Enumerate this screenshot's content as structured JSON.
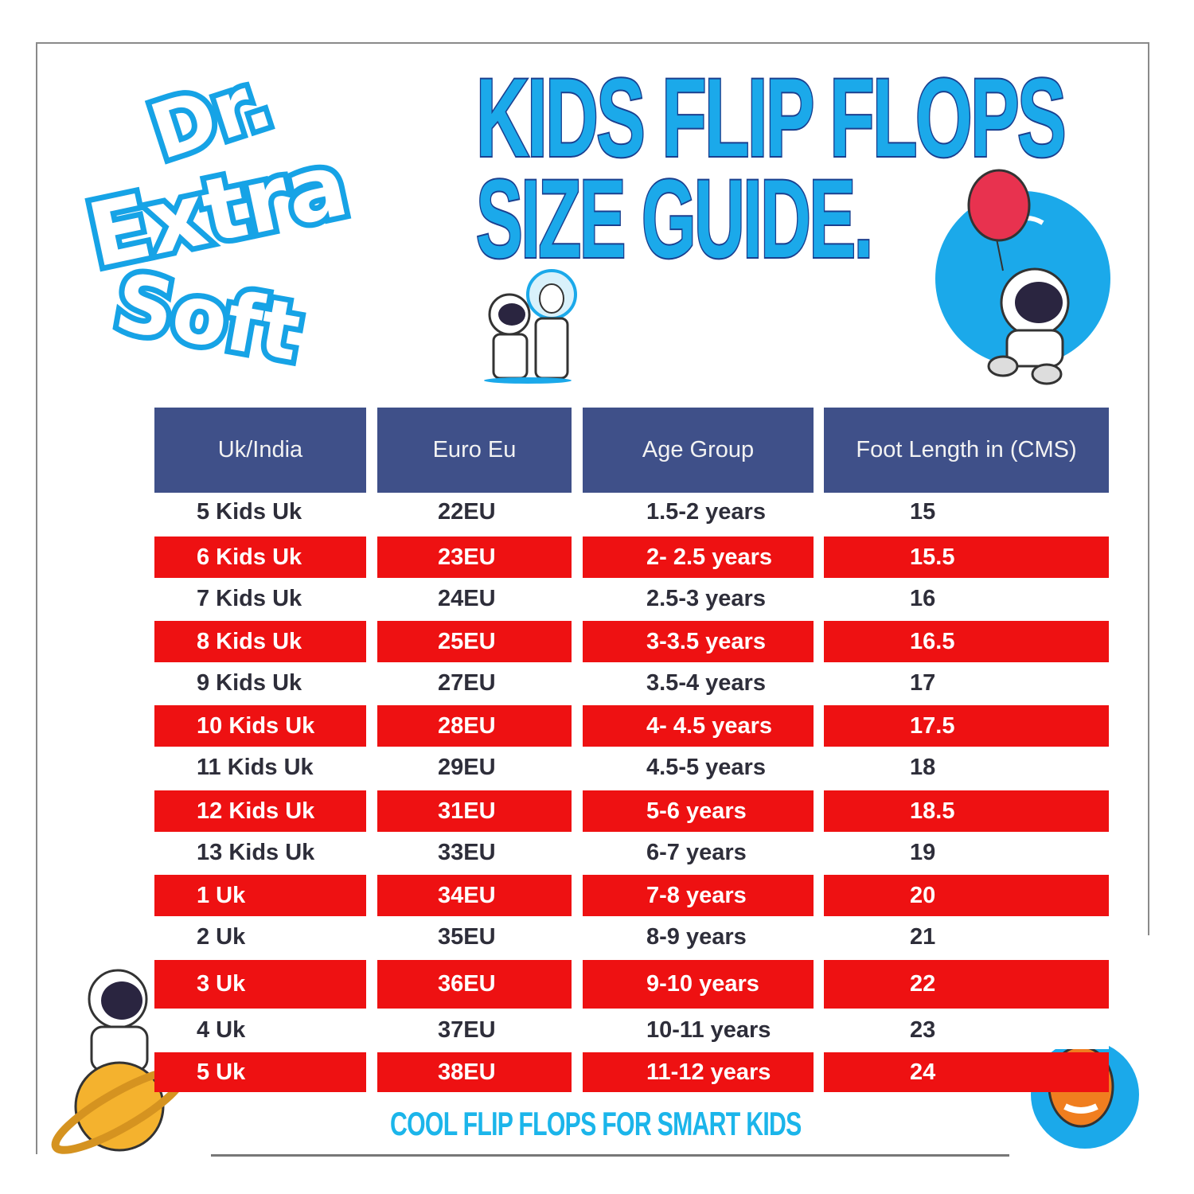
{
  "brand": {
    "line1": "Dr.",
    "line2": "Extra",
    "line3": "Soft"
  },
  "title": {
    "line1": "KIDS FLIP FLOPS",
    "line2": "SIZE GUIDE."
  },
  "table": {
    "headers": [
      "Uk/India",
      "Euro Eu",
      "Age Group",
      "Foot Length in (CMS)"
    ],
    "rows": [
      [
        "5 Kids Uk",
        "22EU",
        "1.5-2 years",
        "15"
      ],
      [
        "6 Kids Uk",
        "23EU",
        "2- 2.5 years",
        "15.5"
      ],
      [
        "7 Kids Uk",
        "24EU",
        "2.5-3 years",
        "16"
      ],
      [
        "8 Kids Uk",
        "25EU",
        "3-3.5 years",
        "16.5"
      ],
      [
        "9 Kids Uk",
        "27EU",
        "3.5-4 years",
        "17"
      ],
      [
        "10 Kids Uk",
        "28EU",
        "4- 4.5 years",
        "17.5"
      ],
      [
        "11 Kids Uk",
        "29EU",
        "4.5-5 years",
        "18"
      ],
      [
        "12 Kids Uk",
        "31EU",
        "5-6 years",
        "18.5"
      ],
      [
        "13 Kids Uk",
        "33EU",
        "6-7 years",
        "19"
      ],
      [
        "1 Uk",
        "34EU",
        "7-8 years",
        "20"
      ],
      [
        "2 Uk",
        "35EU",
        "8-9 years",
        "21"
      ],
      [
        "3 Uk",
        "36EU",
        "9-10 years",
        "22"
      ],
      [
        "4 Uk",
        "37EU",
        "10-11 years",
        "23"
      ],
      [
        "5 Uk",
        "38EU",
        "11-12 years",
        "24"
      ]
    ]
  },
  "tagline": "COOL FLIP FLOPS FOR SMART KIDS",
  "colors": {
    "header": "#3f5089",
    "highlight_row": "#ee1112",
    "title": "#1ba9ea",
    "title_outline": "#1a3f8f"
  }
}
